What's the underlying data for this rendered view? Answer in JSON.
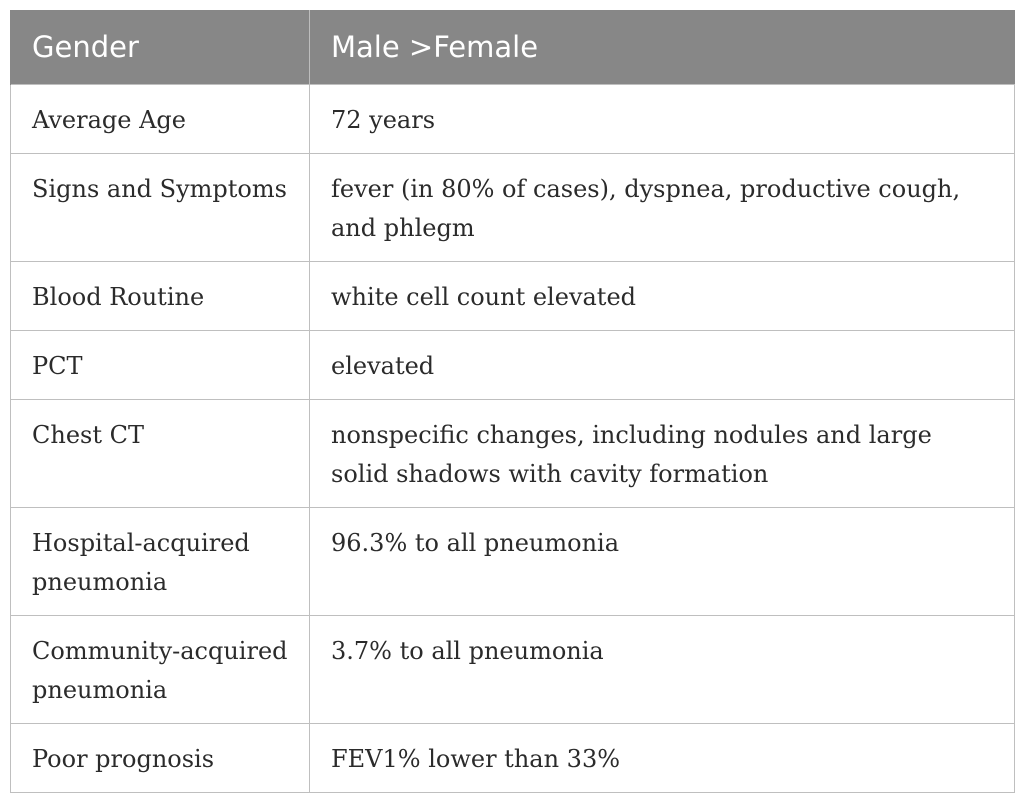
{
  "table": {
    "header": {
      "col1": "Gender",
      "col2": "Male >Female"
    },
    "rows": [
      {
        "label": "Average Age",
        "value": "72 years"
      },
      {
        "label": "Signs and Symptoms",
        "value": "fever (in 80% of cases), dyspnea, productive cough, and phlegm"
      },
      {
        "label": "Blood Routine",
        "value": "white cell count elevated"
      },
      {
        "label": "PCT",
        "value": "elevated"
      },
      {
        "label": "Chest CT",
        "value": "nonspecific changes, including nodules and large solid shadows with cavity formation"
      },
      {
        "label": "Hospital-acquired pneumonia",
        "value": "96.3% to all pneumonia"
      },
      {
        "label": "Community-acquired pneumonia",
        "value": "3.7% to all pneumonia"
      },
      {
        "label": "Poor prognosis",
        "value": "FEV1% lower than 33%"
      }
    ]
  },
  "colors": {
    "header_bg": "#878787",
    "header_text": "#ffffff",
    "body_text": "#2b2b2b",
    "border": "#bfbfbf"
  }
}
